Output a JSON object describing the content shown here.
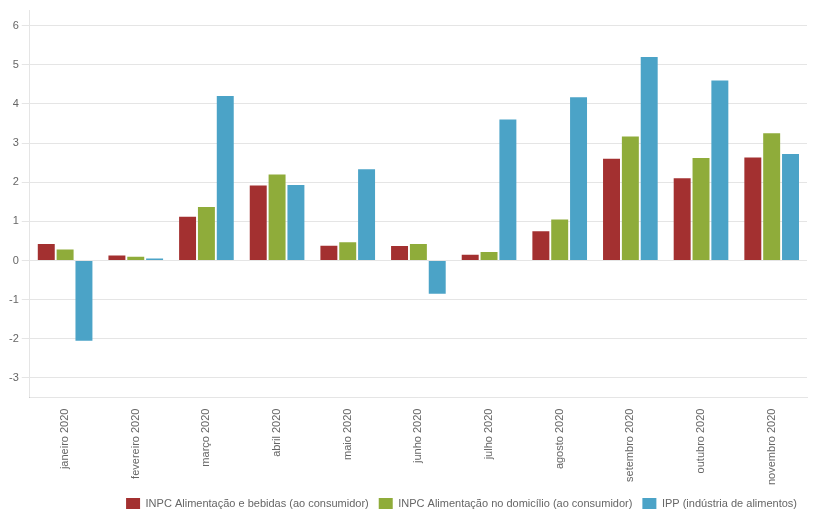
{
  "chart_data": {
    "type": "bar",
    "categories": [
      "janeiro 2020",
      "fevereiro 2020",
      "março 2020",
      "abril 2020",
      "maio 2020",
      "junho 2020",
      "julho 2020",
      "agosto 2020",
      "setembro 2020",
      "outubro 2020",
      "novembro 2020"
    ],
    "series": [
      {
        "name": "INPC Alimentação e bebidas (ao consumidor)",
        "color": "#a33030",
        "values": [
          0.42,
          0.13,
          1.12,
          1.92,
          0.38,
          0.37,
          0.15,
          0.75,
          2.6,
          2.1,
          2.63
        ]
      },
      {
        "name": "INPC Alimentação no domicílio (ao consumidor)",
        "color": "#8fac3a",
        "values": [
          0.28,
          0.1,
          1.37,
          2.2,
          0.47,
          0.42,
          0.22,
          1.05,
          3.17,
          2.62,
          3.25
        ]
      },
      {
        "name": "IPP (indústria de alimentos)",
        "color": "#4ba3c7",
        "values": [
          -2.05,
          0.05,
          4.2,
          1.93,
          2.33,
          -0.85,
          3.6,
          4.17,
          5.2,
          4.6,
          2.72
        ]
      }
    ],
    "ylim": [
      -3.5,
      6.4
    ],
    "yticks": [
      -3,
      -2,
      -1,
      0,
      1,
      2,
      3,
      4,
      5,
      6
    ],
    "grid": true,
    "legend": "lower right"
  }
}
